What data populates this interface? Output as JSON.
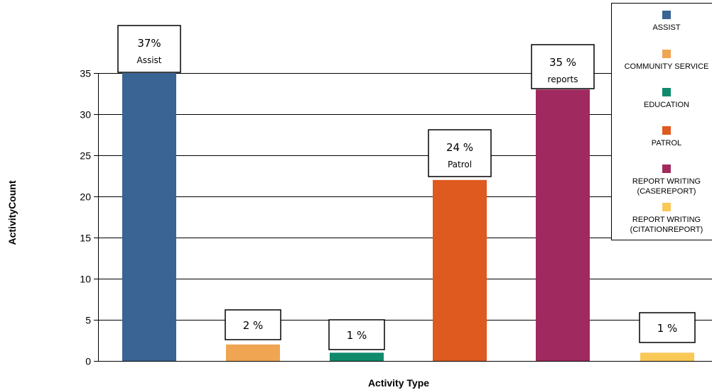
{
  "chart_data": {
    "type": "bar",
    "xlabel": "Activity Type",
    "ylabel": "ActivityCount",
    "ylim": [
      0,
      35
    ],
    "yticks": [
      0,
      5,
      10,
      15,
      20,
      25,
      30,
      35
    ],
    "grid": true,
    "legend_position": "top-right",
    "categories": [
      "ASSIST",
      "COMMUNITY SERVICE",
      "EDUCATION",
      "PATROL",
      "REPORT WRITING (CASEREPORT)",
      "REPORT WRITING (CITATIONREPORT)"
    ],
    "legend_labels": [
      [
        "ASSIST"
      ],
      [
        "COMMUNITY SERVICE"
      ],
      [
        "EDUCATION"
      ],
      [
        "PATROL"
      ],
      [
        "REPORT WRITING",
        "(CASEREPORT)"
      ],
      [
        "REPORT WRITING",
        "(CITATIONREPORT)"
      ]
    ],
    "values": [
      35,
      2,
      1,
      22,
      33,
      1
    ],
    "colors": [
      "#3a6494",
      "#f0a552",
      "#0f8a6a",
      "#de5a1f",
      "#a02a5f",
      "#fac856"
    ],
    "annotations": [
      {
        "percent": "37%",
        "label": "Assist"
      },
      {
        "percent": "2 %",
        "label": ""
      },
      {
        "percent": "1 %",
        "label": ""
      },
      {
        "percent": "24 %",
        "label": "Patrol"
      },
      {
        "percent": "35 %",
        "label": "reports"
      },
      {
        "percent": "1 %",
        "label": ""
      }
    ]
  }
}
